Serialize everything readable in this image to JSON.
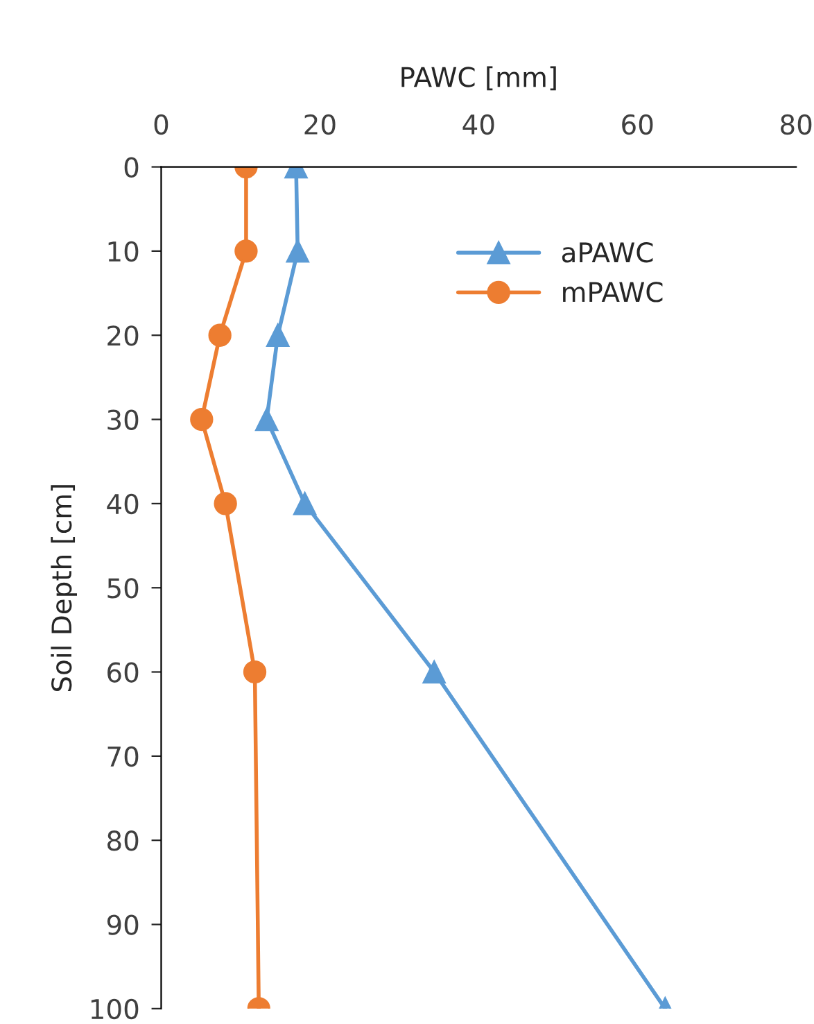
{
  "chart_data": {
    "type": "line",
    "xlabel": "PAWC [mm]",
    "ylabel": "Soil Depth [cm]",
    "xlim": [
      0,
      80
    ],
    "xticks": [
      0,
      20,
      40,
      60,
      80
    ],
    "ylim": [
      100,
      0
    ],
    "yticks": [
      0,
      10,
      20,
      30,
      40,
      50,
      60,
      70,
      80,
      90,
      100
    ],
    "legend": "top right",
    "grid": false,
    "line_style": "solid",
    "series": [
      {
        "name": "aPAWC",
        "color": "#5b9bd5",
        "marker": "triangle",
        "x": [
          17.0,
          17.2,
          14.7,
          13.3,
          18.1,
          34.4,
          63.5
        ],
        "values": [
          0,
          10,
          20,
          30,
          40,
          60,
          100
        ]
      },
      {
        "name": "mPAWC",
        "color": "#ed7d31",
        "marker": "circle",
        "x": [
          10.7,
          10.7,
          7.4,
          5.1,
          8.1,
          11.8,
          12.3
        ],
        "values": [
          0,
          10,
          20,
          30,
          40,
          60,
          100
        ]
      }
    ]
  }
}
